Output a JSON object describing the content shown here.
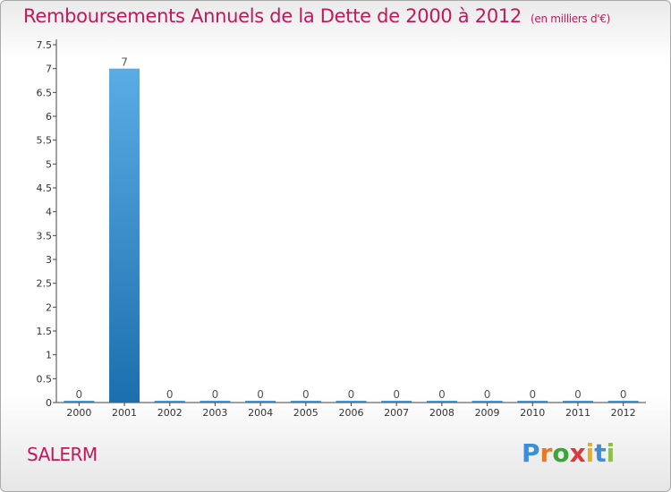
{
  "colors": {
    "title": "#c2185b",
    "bar_top": "#5aace4",
    "bar_bottom": "#1b6fae",
    "axis": "#444444"
  },
  "chart_data": {
    "type": "bar",
    "title": "Remboursements Annuels de la Dette de 2000 à 2012",
    "unit_label": "(en milliers d'€)",
    "xlabel": "",
    "ylabel": "",
    "categories": [
      "2000",
      "2001",
      "2002",
      "2003",
      "2004",
      "2005",
      "2006",
      "2007",
      "2008",
      "2009",
      "2010",
      "2011",
      "2012"
    ],
    "values": [
      0,
      7,
      0,
      0,
      0,
      0,
      0,
      0,
      0,
      0,
      0,
      0,
      0
    ],
    "data_labels": [
      "0",
      "7",
      "0",
      "0",
      "0",
      "0",
      "0",
      "0",
      "0",
      "0",
      "0",
      "0",
      "0"
    ],
    "ylim": [
      0,
      7.5
    ],
    "yticks": [
      0,
      0.5,
      1,
      1.5,
      2,
      2.5,
      3,
      3.5,
      4,
      4.5,
      5,
      5.5,
      6,
      6.5,
      7,
      7.5
    ],
    "ytick_labels": [
      "0",
      "0.5",
      "1",
      "1.5",
      "2",
      "2.5",
      "3",
      "3.5",
      "4",
      "4.5",
      "5",
      "5.5",
      "6",
      "6.5",
      "7",
      "7.5"
    ]
  },
  "commune": "SALERM",
  "logo": {
    "letters": [
      "P",
      "r",
      "o",
      "x",
      "i",
      "t",
      "i"
    ],
    "colors": [
      "#3d8ed8",
      "#e8782a",
      "#3aa63a",
      "#d93a3a",
      "#e8b020",
      "#3d8ed8",
      "#8bc34a"
    ],
    "text": "Proxiti"
  }
}
